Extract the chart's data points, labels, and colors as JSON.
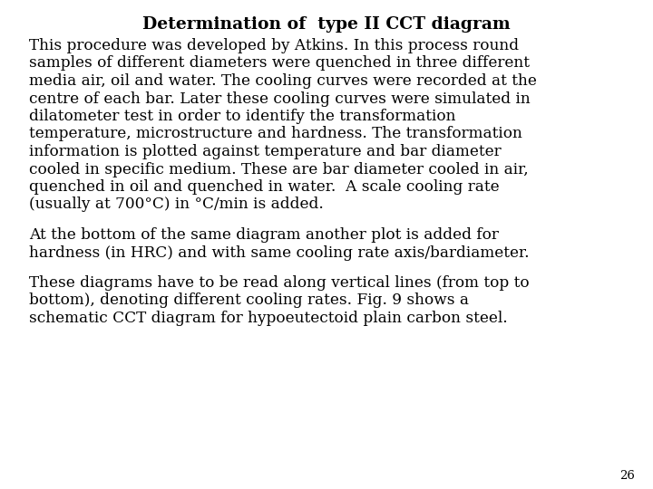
{
  "title": "Determination of  type II CCT diagram",
  "background_color": "#ffffff",
  "text_color": "#000000",
  "title_fontsize": 13.5,
  "body_fontsize": 12.2,
  "page_number": "26",
  "para1_lines": [
    "This procedure was developed by Atkins. In this process round",
    "samples of different diameters were quenched in three different",
    "media air, oil and water. The cooling curves were recorded at the",
    "centre of each bar. Later these cooling curves were simulated in",
    "dilatometer test in order to identify the transformation",
    "temperature, microstructure and hardness. The transformation",
    "information is plotted against temperature and bar diameter",
    "cooled in specific medium. These are bar diameter cooled in air,",
    "quenched in oil and quenched in water.  A scale cooling rate",
    "(usually at 700°C) in °C/min is added."
  ],
  "para2_lines": [
    "At the bottom of the same diagram another plot is added for",
    "hardness (in HRC) and with same cooling rate axis/bardiameter."
  ],
  "para3_lines": [
    "These diagrams have to be read along vertical lines (from top to",
    "bottom), denoting different cooling rates. Fig. 9 shows a",
    "schematic CCT diagram for hypoeutectoid plain carbon steel."
  ]
}
